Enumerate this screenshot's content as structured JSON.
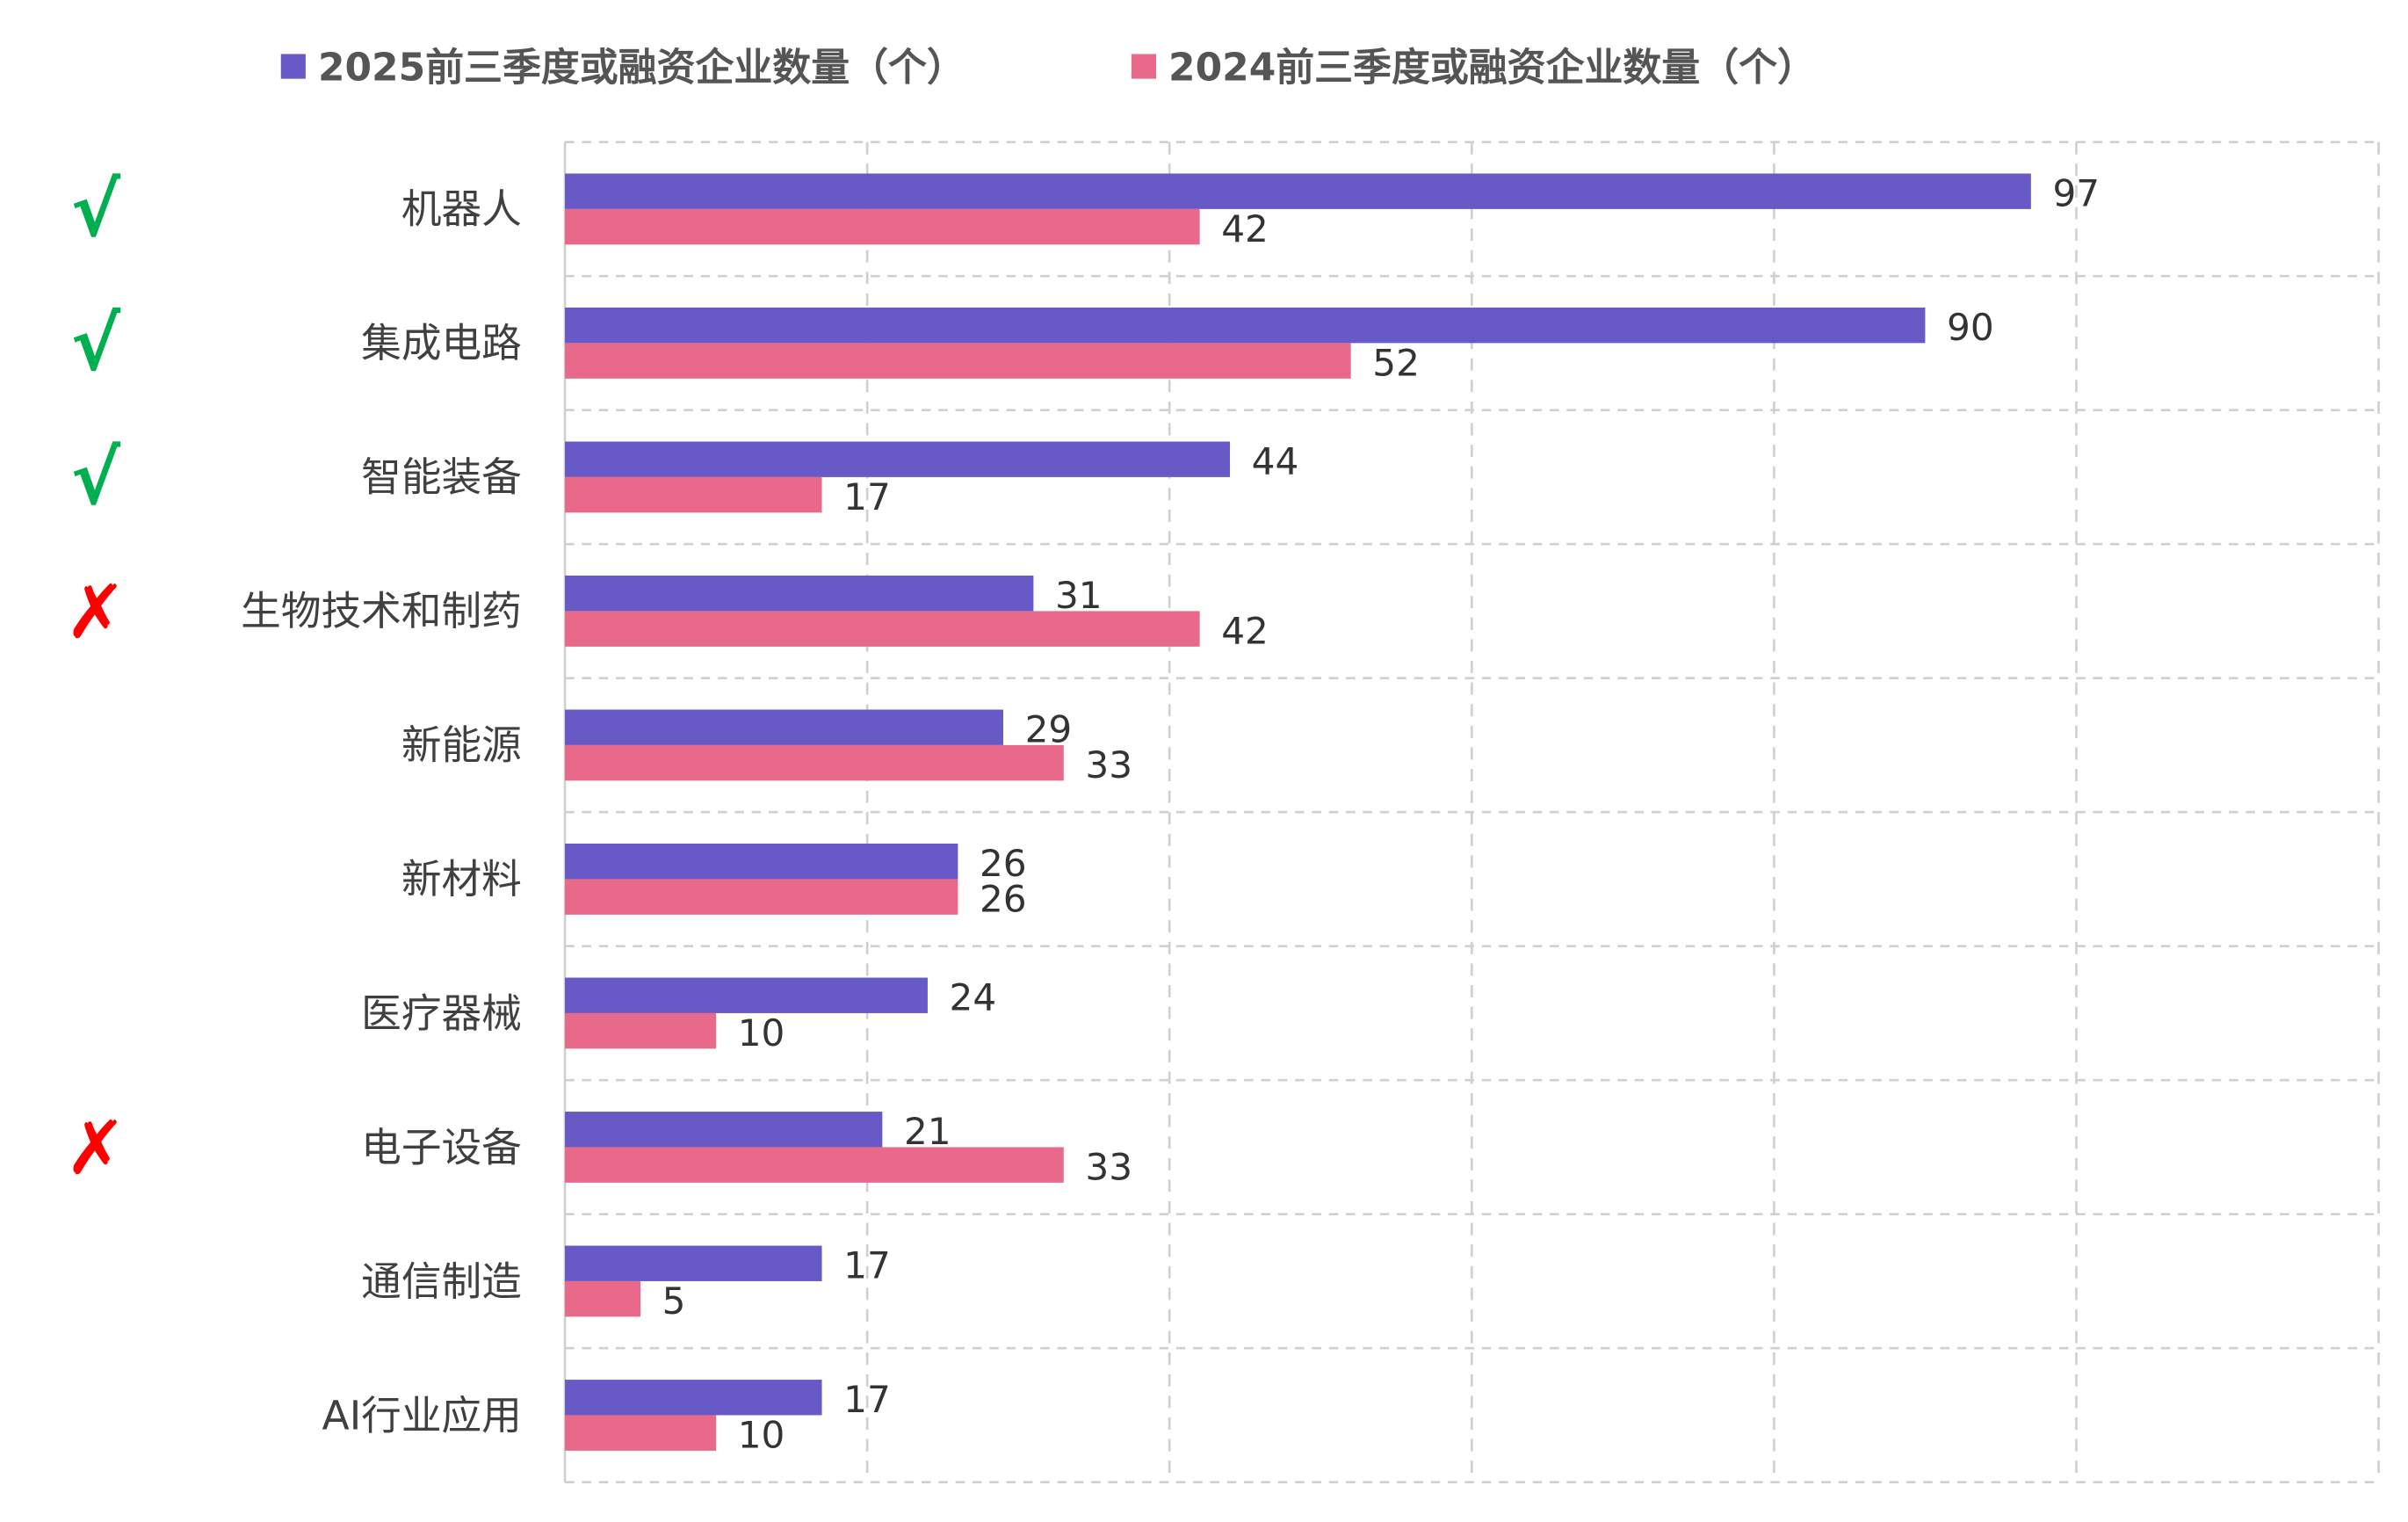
{
  "chart_data": {
    "type": "bar",
    "orientation": "horizontal",
    "title": "",
    "xlabel": "",
    "ylabel": "",
    "xlim": [
      0,
      120
    ],
    "grid": true,
    "legend_position": "top",
    "categories": [
      "机器人",
      "集成电路",
      "智能装备",
      "生物技术和制药",
      "新能源",
      "新材料",
      "医疗器械",
      "电子设备",
      "通信制造",
      "AI行业应用"
    ],
    "series": [
      {
        "name": "2025前三季度或融资企业数量（个）",
        "color": "#6759C6",
        "values": [
          97,
          90,
          44,
          31,
          29,
          26,
          24,
          21,
          17,
          17
        ]
      },
      {
        "name": "2024前三季度或融资企业数量（个）",
        "color": "#E8698A",
        "values": [
          42,
          52,
          17,
          42,
          33,
          26,
          10,
          33,
          5,
          10
        ]
      }
    ],
    "annotations": [
      "√",
      "√",
      "√",
      "✗",
      "",
      "",
      "",
      "✗",
      "",
      ""
    ],
    "annotation_colors": {
      "√": "#00B050",
      "✗": "#FF0000"
    }
  }
}
